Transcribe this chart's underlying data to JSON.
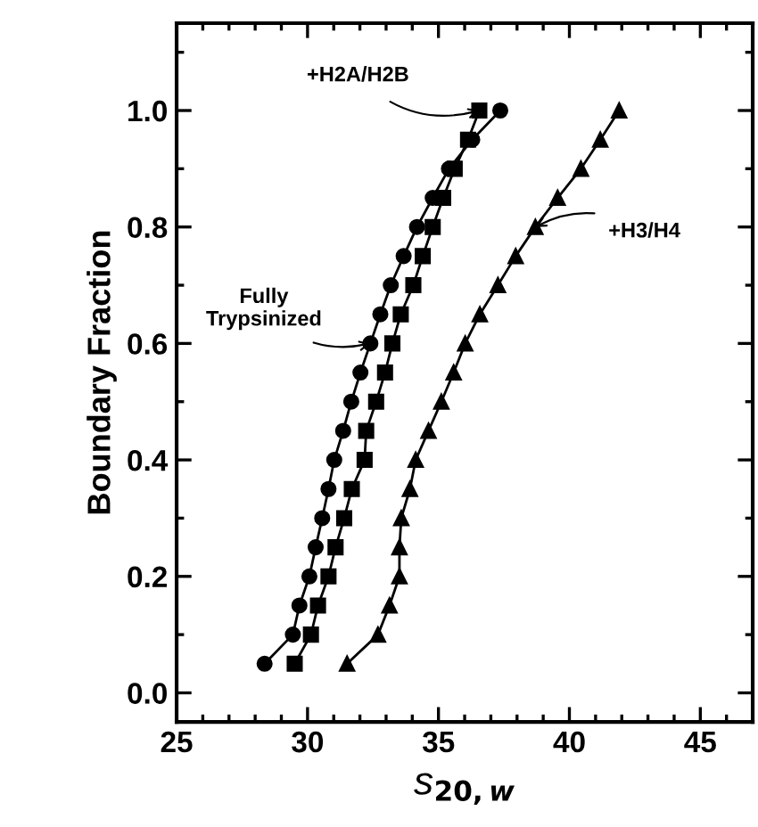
{
  "chart_data": {
    "type": "line",
    "xlabel": "s$_{20,w}$",
    "ylabel": "Boundary Fraction",
    "xlim": [
      25,
      47
    ],
    "xticks": [
      25,
      30,
      35,
      40,
      45
    ],
    "ylim": [
      -0.05,
      1.15
    ],
    "yticks": [
      {
        "value": 0,
        "label": "0.0"
      },
      0.2,
      0.4,
      0.6,
      0.8,
      {
        "value": 1,
        "label": "1.0"
      }
    ],
    "grid": false,
    "legend": false,
    "line_style": "solid",
    "series": [
      {
        "color": "#000000",
        "marker": "circle",
        "x": [
          28.36,
          29.44,
          29.69,
          30.07,
          30.31,
          30.56,
          30.8,
          31.02,
          31.36,
          31.67,
          32.02,
          32.4,
          32.78,
          33.18,
          33.67,
          34.18,
          34.78,
          35.4,
          36.29,
          37.36
        ],
        "values": [
          0.05,
          0.1,
          0.15,
          0.2,
          0.25,
          0.3,
          0.35,
          0.4,
          0.45,
          0.5,
          0.55,
          0.6,
          0.65,
          0.7,
          0.75,
          0.8,
          0.85,
          0.9,
          0.95,
          1.0
        ]
      },
      {
        "color": "#000000",
        "marker": "square",
        "x": [
          29.51,
          30.13,
          30.4,
          30.8,
          31.07,
          31.4,
          31.69,
          32.18,
          32.24,
          32.62,
          32.96,
          33.24,
          33.56,
          34.04,
          34.4,
          34.78,
          35.18,
          35.62,
          36.13,
          36.56
        ],
        "values": [
          0.05,
          0.1,
          0.15,
          0.2,
          0.25,
          0.3,
          0.35,
          0.4,
          0.45,
          0.5,
          0.55,
          0.6,
          0.65,
          0.7,
          0.75,
          0.8,
          0.85,
          0.9,
          0.95,
          1.0
        ]
      },
      {
        "color": "#000000",
        "marker": "triangle",
        "x": [
          31.51,
          32.69,
          33.13,
          33.51,
          33.51,
          33.58,
          33.91,
          34.13,
          34.62,
          35.11,
          35.58,
          36.02,
          36.58,
          37.27,
          37.95,
          38.7,
          39.55,
          40.44,
          41.18,
          41.9
        ],
        "values": [
          0.05,
          0.1,
          0.15,
          0.2,
          0.25,
          0.3,
          0.35,
          0.4,
          0.45,
          0.5,
          0.55,
          0.6,
          0.65,
          0.7,
          0.75,
          0.8,
          0.85,
          0.9,
          0.95,
          1.0
        ]
      }
    ],
    "annotations": [
      {
        "text": "+H2A/H2B",
        "x": 36.56,
        "y": 1.0
      },
      {
        "text": "Fully\nTrypsinized",
        "x": 32.4,
        "y": 0.6
      },
      {
        "text": "+H3/H4",
        "x": 38.7,
        "y": 0.8
      }
    ]
  }
}
